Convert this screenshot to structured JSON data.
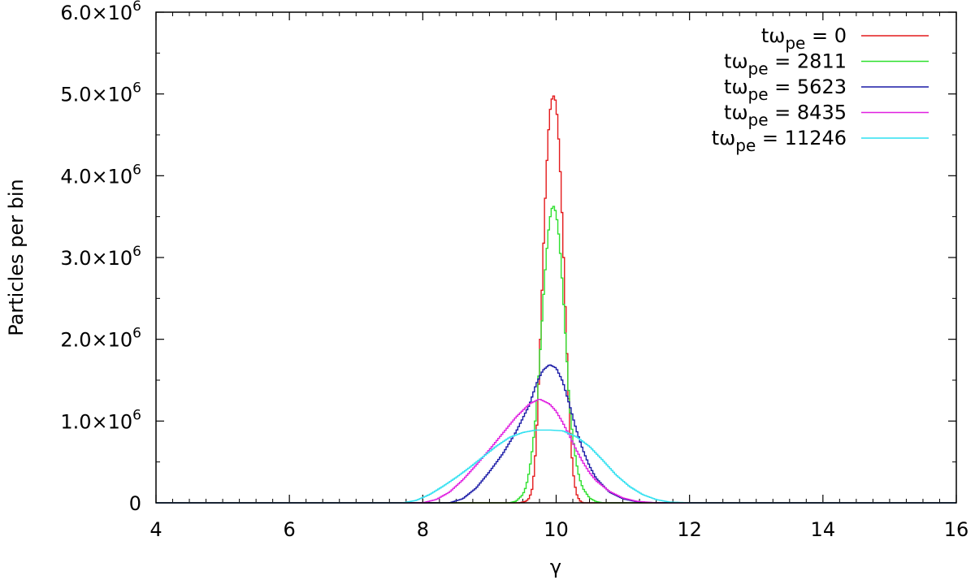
{
  "chart_data": {
    "type": "line",
    "xlabel": "γ",
    "ylabel": "Particles per bin",
    "xlim": [
      4,
      16
    ],
    "ylim": [
      0,
      6000000
    ],
    "grid": false,
    "legend_position": "top-right",
    "x_ticks": [
      {
        "value": 4,
        "label": "4"
      },
      {
        "value": 6,
        "label": "6"
      },
      {
        "value": 8,
        "label": "8"
      },
      {
        "value": 10,
        "label": "10"
      },
      {
        "value": 12,
        "label": "12"
      },
      {
        "value": 14,
        "label": "14"
      },
      {
        "value": 16,
        "label": "16"
      }
    ],
    "y_ticks": [
      {
        "value": 0,
        "mantissa": "0",
        "exp": ""
      },
      {
        "value": 1000000,
        "mantissa": "1.0×10",
        "exp": "6"
      },
      {
        "value": 2000000,
        "mantissa": "2.0×10",
        "exp": "6"
      },
      {
        "value": 3000000,
        "mantissa": "3.0×10",
        "exp": "6"
      },
      {
        "value": 4000000,
        "mantissa": "4.0×10",
        "exp": "6"
      },
      {
        "value": 5000000,
        "mantissa": "5.0×10",
        "exp": "6"
      },
      {
        "value": 6000000,
        "mantissa": "6.0×10",
        "exp": "6"
      }
    ],
    "series": [
      {
        "label_prefix": "tω",
        "label_sub": "pe",
        "label_suffix": " = 0",
        "color": "#e41a1c",
        "points": [
          [
            9.45,
            0
          ],
          [
            9.55,
            20000
          ],
          [
            9.6,
            60000
          ],
          [
            9.65,
            200000
          ],
          [
            9.7,
            700000
          ],
          [
            9.75,
            1700000
          ],
          [
            9.8,
            2900000
          ],
          [
            9.85,
            4000000
          ],
          [
            9.9,
            4750000
          ],
          [
            9.95,
            5000000
          ],
          [
            10.0,
            4900000
          ],
          [
            10.05,
            4300000
          ],
          [
            10.1,
            3300000
          ],
          [
            10.15,
            2100000
          ],
          [
            10.2,
            1000000
          ],
          [
            10.25,
            400000
          ],
          [
            10.3,
            120000
          ],
          [
            10.35,
            30000
          ],
          [
            10.4,
            0
          ]
        ]
      },
      {
        "label_prefix": "tω",
        "label_sub": "pe",
        "label_suffix": " = 2811",
        "color": "#2ee02e",
        "points": [
          [
            9.3,
            0
          ],
          [
            9.4,
            20000
          ],
          [
            9.5,
            100000
          ],
          [
            9.55,
            200000
          ],
          [
            9.6,
            400000
          ],
          [
            9.65,
            700000
          ],
          [
            9.7,
            1100000
          ],
          [
            9.75,
            1700000
          ],
          [
            9.8,
            2400000
          ],
          [
            9.85,
            3000000
          ],
          [
            9.9,
            3450000
          ],
          [
            9.95,
            3650000
          ],
          [
            10.0,
            3550000
          ],
          [
            10.05,
            3200000
          ],
          [
            10.1,
            2600000
          ],
          [
            10.15,
            1900000
          ],
          [
            10.2,
            1200000
          ],
          [
            10.25,
            800000
          ],
          [
            10.3,
            500000
          ],
          [
            10.35,
            300000
          ],
          [
            10.4,
            180000
          ],
          [
            10.5,
            60000
          ],
          [
            10.6,
            15000
          ],
          [
            10.7,
            0
          ]
        ]
      },
      {
        "label_prefix": "tω",
        "label_sub": "pe",
        "label_suffix": " = 5623",
        "color": "#1a1aa6",
        "points": [
          [
            8.4,
            0
          ],
          [
            8.6,
            50000
          ],
          [
            8.8,
            180000
          ],
          [
            9.0,
            380000
          ],
          [
            9.2,
            600000
          ],
          [
            9.4,
            870000
          ],
          [
            9.6,
            1200000
          ],
          [
            9.7,
            1450000
          ],
          [
            9.8,
            1620000
          ],
          [
            9.9,
            1690000
          ],
          [
            10.0,
            1650000
          ],
          [
            10.1,
            1480000
          ],
          [
            10.2,
            1200000
          ],
          [
            10.3,
            900000
          ],
          [
            10.4,
            650000
          ],
          [
            10.5,
            450000
          ],
          [
            10.6,
            300000
          ],
          [
            10.8,
            130000
          ],
          [
            11.0,
            50000
          ],
          [
            11.2,
            15000
          ],
          [
            11.5,
            0
          ]
        ]
      },
      {
        "label_prefix": "tω",
        "label_sub": "pe",
        "label_suffix": " = 8435",
        "color": "#e020e0",
        "points": [
          [
            8.0,
            0
          ],
          [
            8.2,
            40000
          ],
          [
            8.4,
            130000
          ],
          [
            8.6,
            280000
          ],
          [
            8.8,
            460000
          ],
          [
            9.0,
            650000
          ],
          [
            9.2,
            850000
          ],
          [
            9.4,
            1050000
          ],
          [
            9.6,
            1210000
          ],
          [
            9.75,
            1270000
          ],
          [
            9.9,
            1210000
          ],
          [
            10.0,
            1120000
          ],
          [
            10.1,
            980000
          ],
          [
            10.2,
            820000
          ],
          [
            10.3,
            650000
          ],
          [
            10.4,
            500000
          ],
          [
            10.5,
            370000
          ],
          [
            10.6,
            270000
          ],
          [
            10.8,
            140000
          ],
          [
            11.0,
            60000
          ],
          [
            11.2,
            20000
          ],
          [
            11.5,
            0
          ]
        ]
      },
      {
        "label_prefix": "tω",
        "label_sub": "pe",
        "label_suffix": " = 11246",
        "color": "#2ee0f0",
        "points": [
          [
            7.7,
            0
          ],
          [
            7.9,
            30000
          ],
          [
            8.1,
            100000
          ],
          [
            8.3,
            200000
          ],
          [
            8.5,
            310000
          ],
          [
            8.7,
            430000
          ],
          [
            8.9,
            560000
          ],
          [
            9.1,
            690000
          ],
          [
            9.3,
            800000
          ],
          [
            9.5,
            860000
          ],
          [
            9.7,
            890000
          ],
          [
            9.9,
            890000
          ],
          [
            10.1,
            880000
          ],
          [
            10.3,
            810000
          ],
          [
            10.5,
            690000
          ],
          [
            10.7,
            520000
          ],
          [
            10.9,
            340000
          ],
          [
            11.1,
            200000
          ],
          [
            11.3,
            100000
          ],
          [
            11.5,
            40000
          ],
          [
            11.7,
            10000
          ],
          [
            12.0,
            0
          ]
        ]
      }
    ]
  }
}
